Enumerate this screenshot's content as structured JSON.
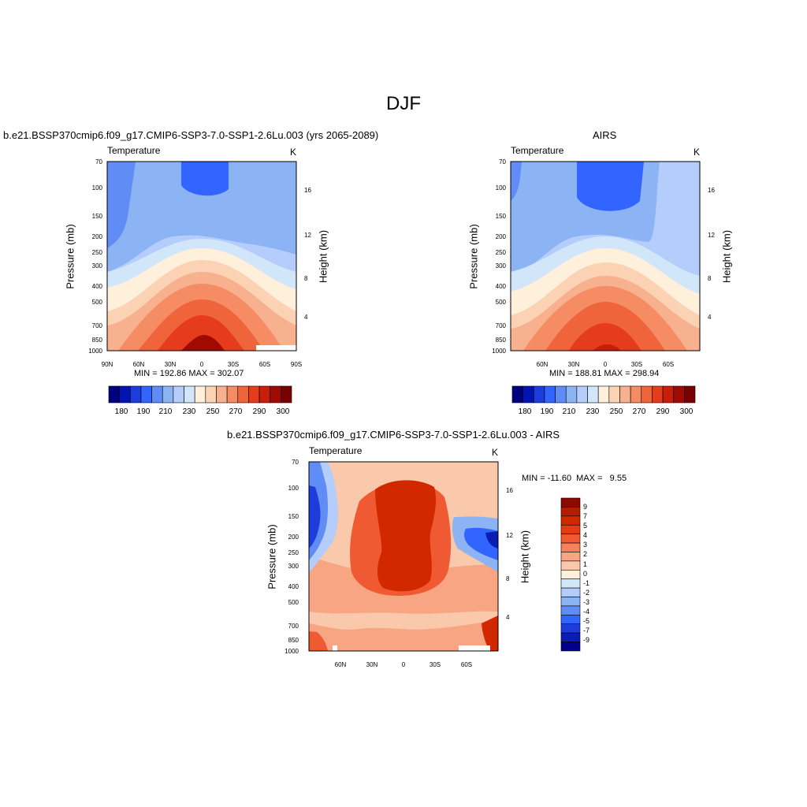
{
  "figure_title": "DJF",
  "chart_data": [
    {
      "type": "heatmap",
      "panel_title": "b.e21.BSSP370cmip6.f09_g17.CMIP6-SSP3-7.0-SSP1-2.6Lu.003 (yrs 2065-2089)",
      "left_label": "Temperature",
      "right_label": "K",
      "ylabel": "Pressure (mb)",
      "y2label": "Height (km)",
      "x_ticks": [
        "90N",
        "60N",
        "30N",
        "0",
        "30S",
        "60S",
        "90S"
      ],
      "y_ticks": [
        "70",
        "100",
        "150",
        "200",
        "250",
        "300",
        "400",
        "500",
        "700",
        "850",
        "1000"
      ],
      "y2_ticks": [
        "16",
        "12",
        "8",
        "4"
      ],
      "stats": "MIN = 192.86  MAX = 302.07",
      "colorbar_labels": [
        "180",
        "190",
        "210",
        "230",
        "250",
        "270",
        "290",
        "300"
      ],
      "colorbar_colors": [
        "#00007f",
        "#0014b4",
        "#1e3cdc",
        "#3264ff",
        "#5f8cf5",
        "#8cb4f5",
        "#b4cdfa",
        "#d2e6fa",
        "#fff0dc",
        "#fcd2b4",
        "#f7b18f",
        "#f58c64",
        "#f0643c",
        "#e63c1e",
        "#c81e0a",
        "#a00a00",
        "#780000"
      ],
      "min": 192.86,
      "max": 302.07
    },
    {
      "type": "heatmap",
      "panel_title": "AIRS",
      "left_label": "Temperature",
      "right_label": "K",
      "ylabel": "Pressure (mb)",
      "y2label": "Height (km)",
      "x_ticks": [
        "60N",
        "30N",
        "0",
        "30S",
        "60S"
      ],
      "y_ticks": [
        "70",
        "100",
        "150",
        "200",
        "250",
        "300",
        "400",
        "500",
        "700",
        "850",
        "1000"
      ],
      "y2_ticks": [
        "16",
        "12",
        "8",
        "4"
      ],
      "stats": "MIN = 188.81  MAX = 298.94",
      "colorbar_labels": [
        "180",
        "190",
        "210",
        "230",
        "250",
        "270",
        "290",
        "300"
      ],
      "min": 188.81,
      "max": 298.94
    },
    {
      "type": "heatmap",
      "panel_title": "b.e21.BSSP370cmip6.f09_g17.CMIP6-SSP3-7.0-SSP1-2.6Lu.003 - AIRS",
      "left_label": "Temperature",
      "right_label": "K",
      "ylabel": "Pressure (mb)",
      "y2label": "Height (km)",
      "x_ticks": [
        "60N",
        "30N",
        "0",
        "30S",
        "60S"
      ],
      "y_ticks": [
        "70",
        "100",
        "150",
        "200",
        "250",
        "300",
        "400",
        "500",
        "700",
        "850",
        "1000"
      ],
      "y2_ticks": [
        "16",
        "12",
        "8",
        "4"
      ],
      "stats": "MIN = -11.60  MAX =   9.55",
      "colorbar_labels": [
        "9",
        "7",
        "5",
        "4",
        "3",
        "2",
        "1",
        "0",
        "-1",
        "-2",
        "-3",
        "-4",
        "-5",
        "-7",
        "-9"
      ],
      "colorbar_colors": [
        "#8c0a00",
        "#b41e00",
        "#d22800",
        "#e63c14",
        "#f05a32",
        "#f5825a",
        "#f7a582",
        "#fac8aa",
        "#fff0dc",
        "#d2e6fa",
        "#b4cdfa",
        "#8cb4f5",
        "#5f8cf5",
        "#3264ff",
        "#1e3cdc",
        "#0a1eb4",
        "#00008c"
      ],
      "min": -11.6,
      "max": 9.55
    }
  ]
}
